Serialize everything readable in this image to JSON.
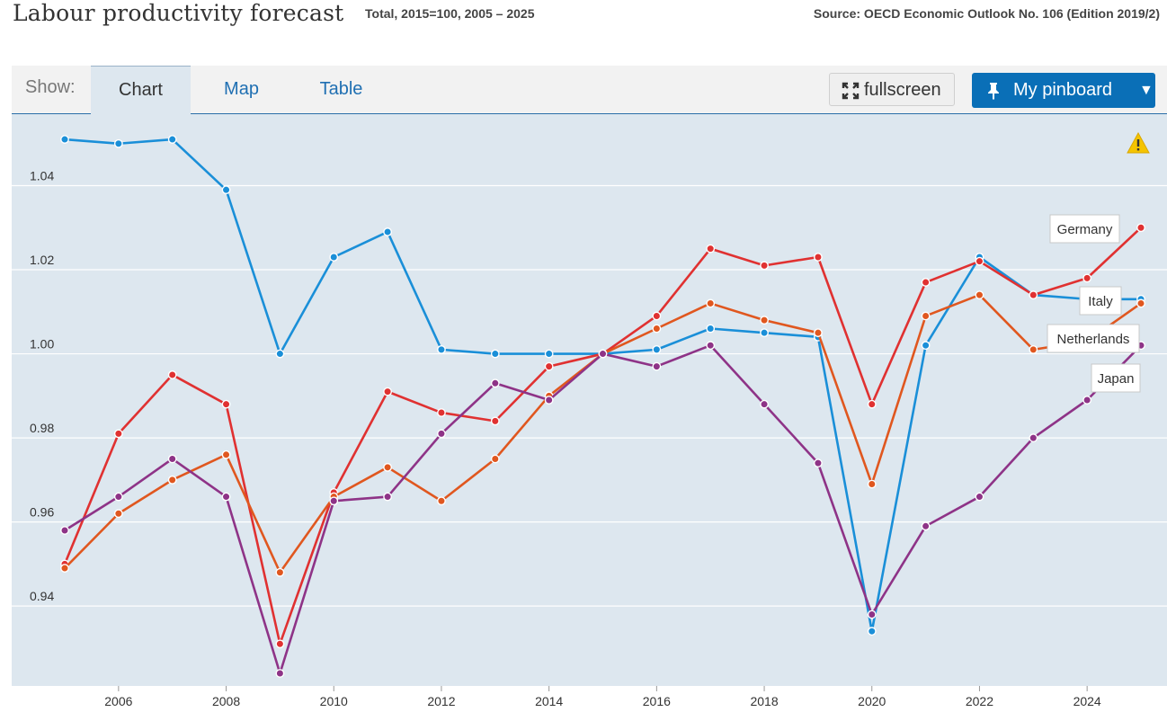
{
  "header": {
    "title": "Labour productivity forecast",
    "subtitle": "Total, 2015=100, 2005 – 2025",
    "source": "Source: OECD Economic Outlook No. 106 (Edition 2019/2)"
  },
  "toolbar": {
    "show_label": "Show:",
    "tabs": [
      {
        "label": "Chart",
        "active": true
      },
      {
        "label": "Map",
        "active": false
      },
      {
        "label": "Table",
        "active": false
      }
    ],
    "fullscreen_label": "fullscreen",
    "pinboard_label": "My pinboard",
    "pinboard_caret": "▼"
  },
  "icons": {
    "fullscreen": "expand-arrows-icon",
    "pinboard": "pin-icon",
    "warning": "warning-triangle-icon"
  },
  "colors": {
    "accent": "#0a6fb7",
    "plot_background": "#dde7ef",
    "Germany": "#e03131",
    "Italy": "#1a8fd8",
    "Netherlands": "#e0571f",
    "Japan": "#8e3387"
  },
  "chart_data": {
    "type": "line",
    "title": "",
    "xlabel": "",
    "ylabel": "",
    "x": [
      2005,
      2006,
      2007,
      2008,
      2009,
      2010,
      2011,
      2012,
      2013,
      2014,
      2015,
      2016,
      2017,
      2018,
      2019,
      2020,
      2021,
      2022,
      2023,
      2024,
      2025
    ],
    "xticks": [
      2006,
      2008,
      2010,
      2012,
      2014,
      2016,
      2018,
      2020,
      2022,
      2024
    ],
    "yticks": [
      0.94,
      0.96,
      0.98,
      1.0,
      1.02,
      1.04
    ],
    "ytick_labels": [
      "0.94",
      "0.96",
      "0.98",
      "1.00",
      "1.02",
      "1.04"
    ],
    "ylim": [
      0.921,
      1.057
    ],
    "grid": "horizontal",
    "legend": "inline labels at right",
    "series": [
      {
        "name": "Italy",
        "color": "#1a8fd8",
        "values": [
          1.051,
          1.05,
          1.051,
          1.039,
          1.0,
          1.023,
          1.029,
          1.001,
          1.0,
          1.0,
          1.0,
          1.001,
          1.006,
          1.005,
          1.004,
          0.934,
          1.002,
          1.023,
          1.014,
          1.013,
          1.013
        ]
      },
      {
        "name": "Germany",
        "color": "#e03131",
        "values": [
          0.95,
          0.981,
          0.995,
          0.988,
          0.931,
          0.967,
          0.991,
          0.986,
          0.984,
          0.997,
          1.0,
          1.009,
          1.025,
          1.021,
          1.023,
          0.988,
          1.017,
          1.022,
          1.014,
          1.018,
          1.03
        ]
      },
      {
        "name": "Netherlands",
        "color": "#e0571f",
        "values": [
          0.949,
          0.962,
          0.97,
          0.976,
          0.948,
          0.966,
          0.973,
          0.965,
          0.975,
          0.99,
          1.0,
          1.006,
          1.012,
          1.008,
          1.005,
          0.969,
          1.009,
          1.014,
          1.001,
          1.003,
          1.012
        ]
      },
      {
        "name": "Japan",
        "color": "#8e3387",
        "values": [
          0.958,
          0.966,
          0.975,
          0.966,
          0.924,
          0.965,
          0.966,
          0.981,
          0.993,
          0.989,
          1.0,
          0.997,
          1.002,
          0.988,
          0.974,
          0.938,
          0.959,
          0.966,
          0.98,
          0.989,
          1.002
        ]
      }
    ],
    "label_boxes": [
      {
        "name": "Germany"
      },
      {
        "name": "Italy"
      },
      {
        "name": "Netherlands"
      },
      {
        "name": "Japan"
      }
    ]
  }
}
